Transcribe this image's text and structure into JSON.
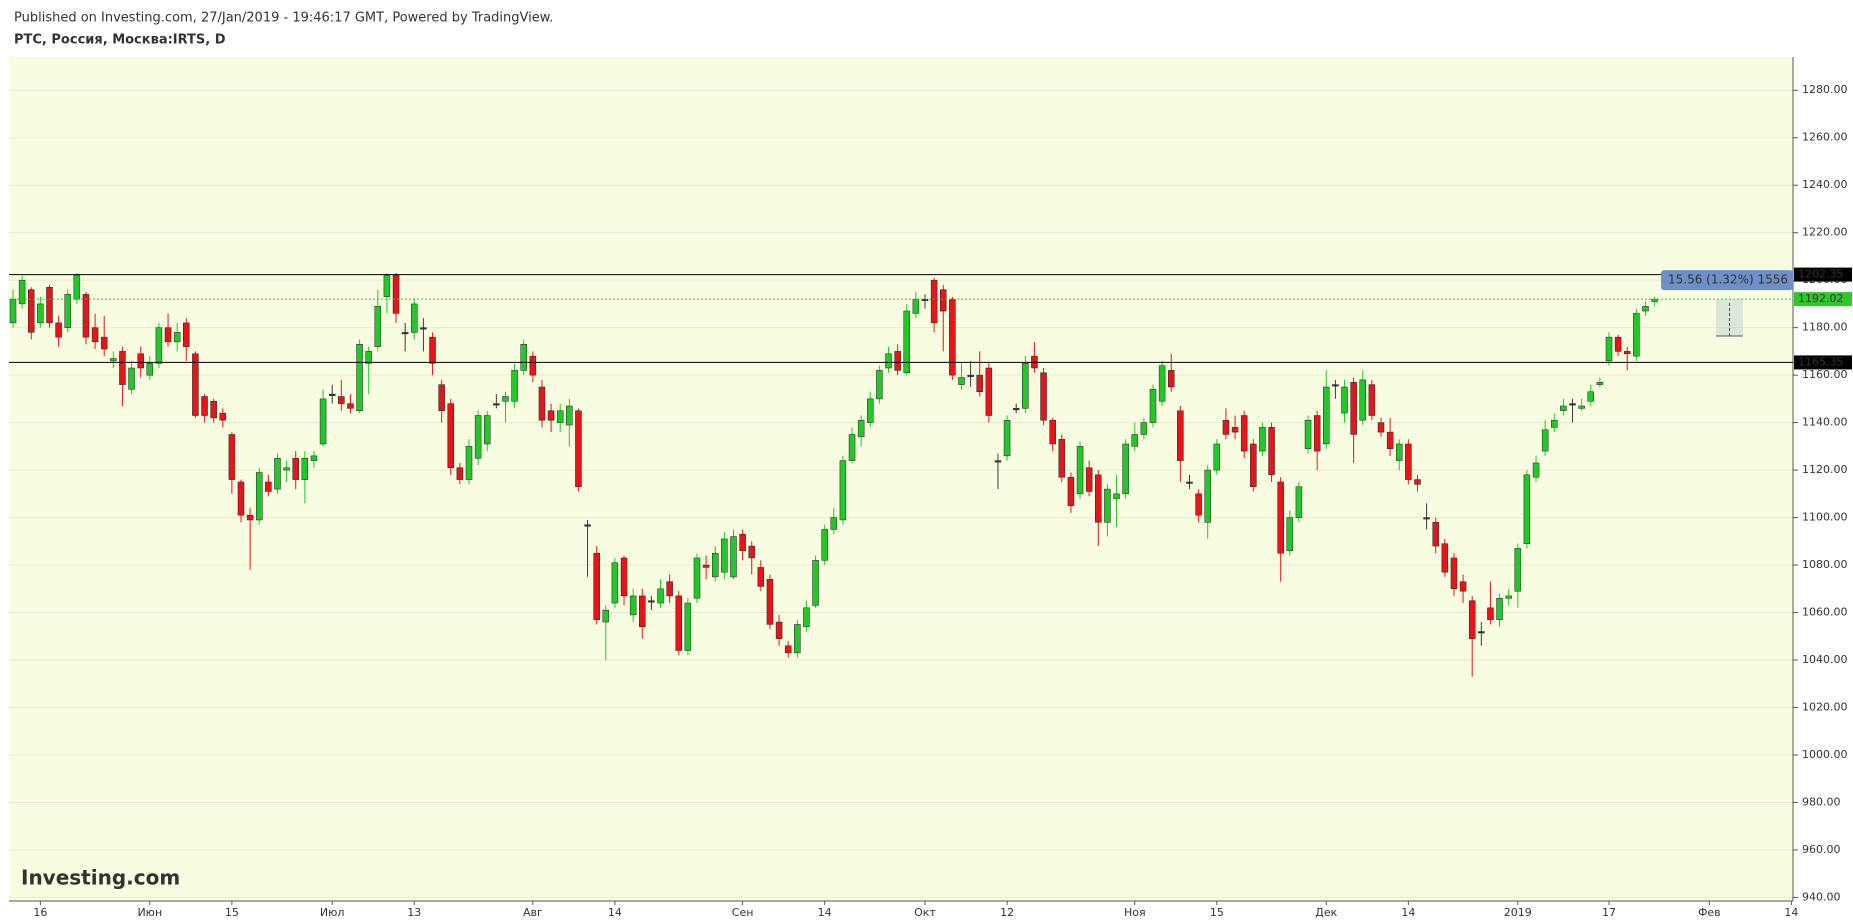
{
  "chart_data": {
    "type": "candlestick",
    "caption": "Published on Investing.com, 27/Jan/2019 - 19:46:17 GMT, Powered by TradingView.",
    "title": "PTC, Россия, Москва:IRTS, D",
    "watermark": "Investing.com",
    "categories": [
      null,
      null,
      null,
      "16",
      null,
      null,
      null,
      null,
      null,
      null,
      null,
      null,
      null,
      null,
      null,
      "Июн",
      null,
      null,
      null,
      null,
      null,
      null,
      null,
      null,
      "15",
      null,
      null,
      null,
      null,
      null,
      null,
      null,
      null,
      null,
      null,
      "Июл",
      null,
      null,
      null,
      null,
      null,
      null,
      null,
      null,
      "13",
      null,
      null,
      null,
      null,
      null,
      null,
      null,
      null,
      null,
      null,
      null,
      null,
      "Авг",
      null,
      null,
      null,
      null,
      null,
      null,
      null,
      null,
      "14",
      null,
      null,
      null,
      null,
      null,
      null,
      null,
      null,
      null,
      null,
      null,
      null,
      null,
      "Сен",
      null,
      null,
      null,
      null,
      null,
      null,
      null,
      null,
      "14",
      null,
      null,
      null,
      null,
      null,
      null,
      null,
      null,
      null,
      null,
      "Окт",
      null,
      null,
      null,
      null,
      null,
      null,
      null,
      null,
      "12",
      null,
      null,
      null,
      null,
      null,
      null,
      null,
      null,
      null,
      null,
      null,
      null,
      null,
      "Ноя",
      null,
      null,
      null,
      null,
      null,
      null,
      null,
      null,
      "15",
      null,
      null,
      null,
      null,
      null,
      null,
      null,
      null,
      null,
      null,
      null,
      "Дек",
      null,
      null,
      null,
      null,
      null,
      null,
      null,
      null,
      "14",
      null,
      null,
      null,
      null,
      null,
      null,
      null,
      null,
      null,
      null,
      null,
      "2019",
      null,
      null,
      null,
      null,
      null,
      null,
      null,
      null,
      null,
      "17",
      null,
      null,
      null,
      null,
      null,
      null,
      null,
      null,
      null,
      null,
      "Фев",
      null,
      null,
      null,
      null,
      null,
      null,
      null,
      null,
      "14"
    ],
    "open": [
      1182,
      1190,
      1196,
      1182,
      1197,
      1182,
      1180,
      1192,
      1194,
      1180,
      1176,
      1166,
      1170,
      1154,
      1169,
      1160,
      1165,
      1180,
      1174,
      1182,
      1169,
      1151,
      1149,
      1144,
      1135,
      1115,
      1101,
      1099,
      1115,
      1112,
      1120,
      1125,
      1116,
      1124,
      1131,
      1152,
      1151,
      1148,
      1145,
      1165,
      1172,
      1193,
      1202,
      1178,
      1178,
      1180,
      1176,
      1156,
      1148,
      1121,
      1116,
      1125,
      1131,
      1148,
      1149,
      1149,
      1162,
      1168,
      1155,
      1145,
      1140,
      1139,
      1145,
      1097,
      1085,
      1056,
      1064,
      1083,
      1059,
      1067,
      1065,
      1064,
      1073,
      1067,
      1044,
      1066,
      1080,
      1075,
      1077,
      1075,
      1093,
      1088,
      1079,
      1074,
      1056,
      1046,
      1043,
      1054,
      1063,
      1082,
      1095,
      1099,
      1124,
      1134,
      1140,
      1150,
      1163,
      1170,
      1161,
      1186,
      1192,
      1200,
      1196,
      1192,
      1156,
      1160,
      1160,
      1163,
      1124,
      1126,
      1146,
      1146,
      1168,
      1161,
      1141,
      1133,
      1117,
      1110,
      1121,
      1118,
      1098,
      1108,
      1110,
      1130,
      1135,
      1140,
      1149,
      1162,
      1145,
      1115,
      1110,
      1098,
      1120,
      1141,
      1138,
      1143,
      1131,
      1128,
      1138,
      1115,
      1086,
      1100,
      1129,
      1143,
      1131,
      1156,
      1144,
      1157,
      1141,
      1156,
      1140,
      1136,
      1124,
      1131,
      1116,
      1100,
      1098,
      1089,
      1083,
      1073,
      1065,
      1052,
      1062,
      1057,
      1066,
      1069,
      1089,
      1117,
      1128,
      1138,
      1145,
      1148,
      1146,
      1149,
      1156,
      1166,
      1176,
      1170,
      1168,
      1187,
      1191,
      null,
      null,
      null,
      null,
      null,
      null,
      null,
      null,
      null,
      null,
      null,
      null,
      null,
      null,
      null
    ],
    "high": [
      1196,
      1202,
      1197,
      1193,
      1198,
      1185,
      1196,
      1203,
      1195,
      1186,
      1185,
      1170,
      1172,
      1166,
      1172,
      1168,
      1182,
      1186,
      1182,
      1184,
      1170,
      1152,
      1150,
      1146,
      1136,
      1116,
      1104,
      1121,
      1118,
      1127,
      1124,
      1128,
      1128,
      1128,
      1154,
      1156,
      1158,
      1152,
      1175,
      1172,
      1196,
      1203,
      1203,
      1182,
      1192,
      1184,
      1178,
      1158,
      1150,
      1123,
      1133,
      1145,
      1145,
      1152,
      1153,
      1165,
      1175,
      1170,
      1158,
      1148,
      1148,
      1150,
      1146,
      1099,
      1088,
      1063,
      1083,
      1084,
      1070,
      1070,
      1067,
      1074,
      1076,
      1069,
      1066,
      1085,
      1084,
      1088,
      1094,
      1095,
      1095,
      1090,
      1082,
      1076,
      1059,
      1048,
      1057,
      1065,
      1084,
      1097,
      1104,
      1126,
      1138,
      1143,
      1153,
      1164,
      1172,
      1173,
      1190,
      1195,
      1194,
      1201,
      1198,
      1193,
      1165,
      1166,
      1170,
      1165,
      1127,
      1143,
      1148,
      1168,
      1174,
      1163,
      1142,
      1135,
      1119,
      1132,
      1124,
      1120,
      1114,
      1118,
      1133,
      1140,
      1142,
      1156,
      1166,
      1169,
      1147,
      1118,
      1112,
      1122,
      1133,
      1146,
      1143,
      1145,
      1133,
      1140,
      1140,
      1117,
      1103,
      1115,
      1143,
      1145,
      1162,
      1158,
      1158,
      1159,
      1162,
      1158,
      1142,
      1142,
      1133,
      1133,
      1118,
      1106,
      1100,
      1091,
      1085,
      1076,
      1067,
      1056,
      1073,
      1068,
      1070,
      1089,
      1120,
      1126,
      1141,
      1144,
      1150,
      1150,
      1150,
      1156,
      1159,
      1178,
      1177,
      1172,
      1188,
      1191,
      1193,
      null,
      null,
      null,
      null,
      null,
      null,
      null,
      null,
      null,
      null,
      null,
      null,
      null,
      null,
      null
    ],
    "low": [
      1180,
      1188,
      1175,
      1180,
      1180,
      1172,
      1178,
      1190,
      1173,
      1171,
      1168,
      1163,
      1147,
      1152,
      1159,
      1158,
      1163,
      1172,
      1170,
      1166,
      1142,
      1140,
      1140,
      1138,
      1110,
      1098,
      1078,
      1097,
      1109,
      1110,
      1115,
      1112,
      1106,
      1121,
      1130,
      1148,
      1145,
      1144,
      1144,
      1152,
      1170,
      1186,
      1182,
      1170,
      1175,
      1170,
      1160,
      1140,
      1118,
      1114,
      1114,
      1122,
      1128,
      1146,
      1140,
      1146,
      1160,
      1157,
      1138,
      1136,
      1136,
      1130,
      1111,
      1075,
      1055,
      1040,
      1062,
      1063,
      1056,
      1049,
      1061,
      1062,
      1064,
      1042,
      1042,
      1064,
      1074,
      1073,
      1074,
      1074,
      1082,
      1076,
      1069,
      1053,
      1046,
      1041,
      1041,
      1052,
      1062,
      1080,
      1093,
      1097,
      1123,
      1130,
      1138,
      1148,
      1161,
      1160,
      1160,
      1184,
      1188,
      1178,
      1170,
      1158,
      1154,
      1155,
      1151,
      1140,
      1112,
      1124,
      1144,
      1144,
      1161,
      1139,
      1128,
      1115,
      1102,
      1108,
      1109,
      1088,
      1092,
      1096,
      1108,
      1128,
      1133,
      1138,
      1147,
      1153,
      1115,
      1112,
      1098,
      1091,
      1118,
      1133,
      1133,
      1125,
      1111,
      1126,
      1115,
      1073,
      1084,
      1098,
      1127,
      1120,
      1129,
      1150,
      1140,
      1123,
      1139,
      1141,
      1134,
      1126,
      1120,
      1114,
      1111,
      1095,
      1085,
      1075,
      1067,
      1064,
      1033,
      1046,
      1055,
      1054,
      1063,
      1062,
      1087,
      1115,
      1126,
      1136,
      1143,
      1140,
      1145,
      1147,
      1155,
      1164,
      1168,
      1162,
      1166,
      1185,
      1189,
      null,
      null,
      null,
      null,
      null,
      null,
      null,
      null,
      null,
      null,
      null,
      null,
      null,
      null,
      null
    ],
    "close": [
      1192,
      1200,
      1178,
      1190,
      1182,
      1176,
      1194,
      1202,
      1176,
      1174,
      1171,
      1167,
      1156,
      1163,
      1163,
      1165,
      1180,
      1174,
      1178,
      1172,
      1143,
      1143,
      1142,
      1141,
      1116,
      1101,
      1099,
      1119,
      1111,
      1125,
      1121,
      1116,
      1125,
      1126,
      1150,
      1152,
      1148,
      1146,
      1173,
      1170,
      1189,
      1202,
      1186,
      1178,
      1190,
      1180,
      1165,
      1145,
      1121,
      1116,
      1130,
      1143,
      1143,
      1148,
      1151,
      1162,
      1173,
      1160,
      1141,
      1141,
      1145,
      1147,
      1113,
      1097,
      1057,
      1061,
      1081,
      1067,
      1067,
      1054,
      1065,
      1070,
      1067,
      1044,
      1064,
      1083,
      1079,
      1085,
      1091,
      1092,
      1086,
      1083,
      1071,
      1055,
      1049,
      1043,
      1055,
      1062,
      1082,
      1095,
      1100,
      1124,
      1135,
      1141,
      1150,
      1162,
      1169,
      1162,
      1187,
      1192,
      1192,
      1182,
      1187,
      1160,
      1159,
      1160,
      1153,
      1143,
      1124,
      1141,
      1146,
      1165,
      1163,
      1141,
      1131,
      1117,
      1105,
      1130,
      1111,
      1098,
      1112,
      1110,
      1131,
      1135,
      1140,
      1154,
      1164,
      1155,
      1124,
      1115,
      1101,
      1120,
      1131,
      1135,
      1136,
      1128,
      1113,
      1138,
      1118,
      1085,
      1100,
      1113,
      1141,
      1128,
      1155,
      1156,
      1155,
      1135,
      1158,
      1143,
      1136,
      1129,
      1131,
      1116,
      1114,
      1100,
      1088,
      1077,
      1070,
      1069,
      1049,
      1052,
      1057,
      1066,
      1067,
      1087,
      1118,
      1123,
      1137,
      1141,
      1147,
      1148,
      1147,
      1153,
      1157,
      1176,
      1170,
      1169,
      1186,
      1189,
      1192,
      null,
      null,
      null,
      null,
      null,
      null,
      null,
      null,
      null,
      null,
      null,
      null,
      null,
      null,
      null
    ],
    "up_color": "#25c52c",
    "down_color": "#e3161b",
    "flat_color": "#3a3a3a",
    "background": "#f8fde1",
    "ylim": [
      938.5,
      1294
    ],
    "yticks": [
      {
        "value": 940,
        "label": "940.00"
      },
      {
        "value": 960,
        "label": "960.00"
      },
      {
        "value": 980,
        "label": "980.00"
      },
      {
        "value": 1000,
        "label": "1000.00"
      },
      {
        "value": 1020,
        "label": "1020.00"
      },
      {
        "value": 1040,
        "label": "1040.00"
      },
      {
        "value": 1060,
        "label": "1060.00"
      },
      {
        "value": 1080,
        "label": "1080.00"
      },
      {
        "value": 1100,
        "label": "1100.00"
      },
      {
        "value": 1120,
        "label": "1120.00"
      },
      {
        "value": 1140,
        "label": "1140.00"
      },
      {
        "value": 1160,
        "label": "1160.00"
      },
      {
        "value": 1180,
        "label": "1180.00"
      },
      {
        "value": 1200,
        "label": "1200.00"
      },
      {
        "value": 1220,
        "label": "1220.00"
      },
      {
        "value": 1240,
        "label": "1240.00"
      },
      {
        "value": 1260,
        "label": "1260.00"
      },
      {
        "value": 1280,
        "label": "1280.00"
      }
    ],
    "grid": true,
    "price_lines": [
      {
        "value": 1202.35,
        "color": "#000000",
        "style": "solid"
      },
      {
        "value": 1192.02,
        "color": "#2fc72a",
        "style": "dotted"
      },
      {
        "value": 1165.35,
        "color": "#000000",
        "style": "solid"
      }
    ],
    "measure": {
      "label": "15.56 (1.32%) 1556",
      "from": 1176.46,
      "to": 1192.02,
      "color": "#6f90c6"
    }
  }
}
